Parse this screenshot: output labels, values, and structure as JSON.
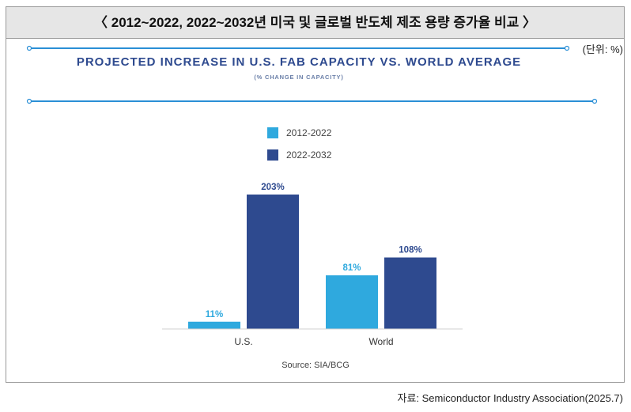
{
  "header": {
    "title": "〈 2012~2022, 2022~2032년 미국 및 글로벌 반도체 제조 용량 증가율 비교 〉",
    "unit": "(단위: %)"
  },
  "colors": {
    "series1": "#2fa9de",
    "series2": "#2e4a8f",
    "title": "#2e4a8f",
    "rule": "#2a8fd6"
  },
  "chart_data": {
    "type": "bar",
    "title": "PROJECTED INCREASE IN U.S. FAB CAPACITY VS. WORLD AVERAGE",
    "subtitle": "(% CHANGE IN CAPACITY)",
    "categories": [
      "U.S.",
      "World"
    ],
    "series": [
      {
        "name": "2012-2022",
        "values": [
          11,
          81
        ],
        "labels": [
          "11%",
          "81%"
        ]
      },
      {
        "name": "2022-2032",
        "values": [
          203,
          108
        ],
        "labels": [
          "203%",
          "108%"
        ]
      }
    ],
    "ylim": [
      0,
      210
    ],
    "legend_position": "top-center",
    "source": "Source: SIA/BCG"
  },
  "footer": {
    "credit": "자료: Semiconductor Industry Association(2025.7)"
  }
}
